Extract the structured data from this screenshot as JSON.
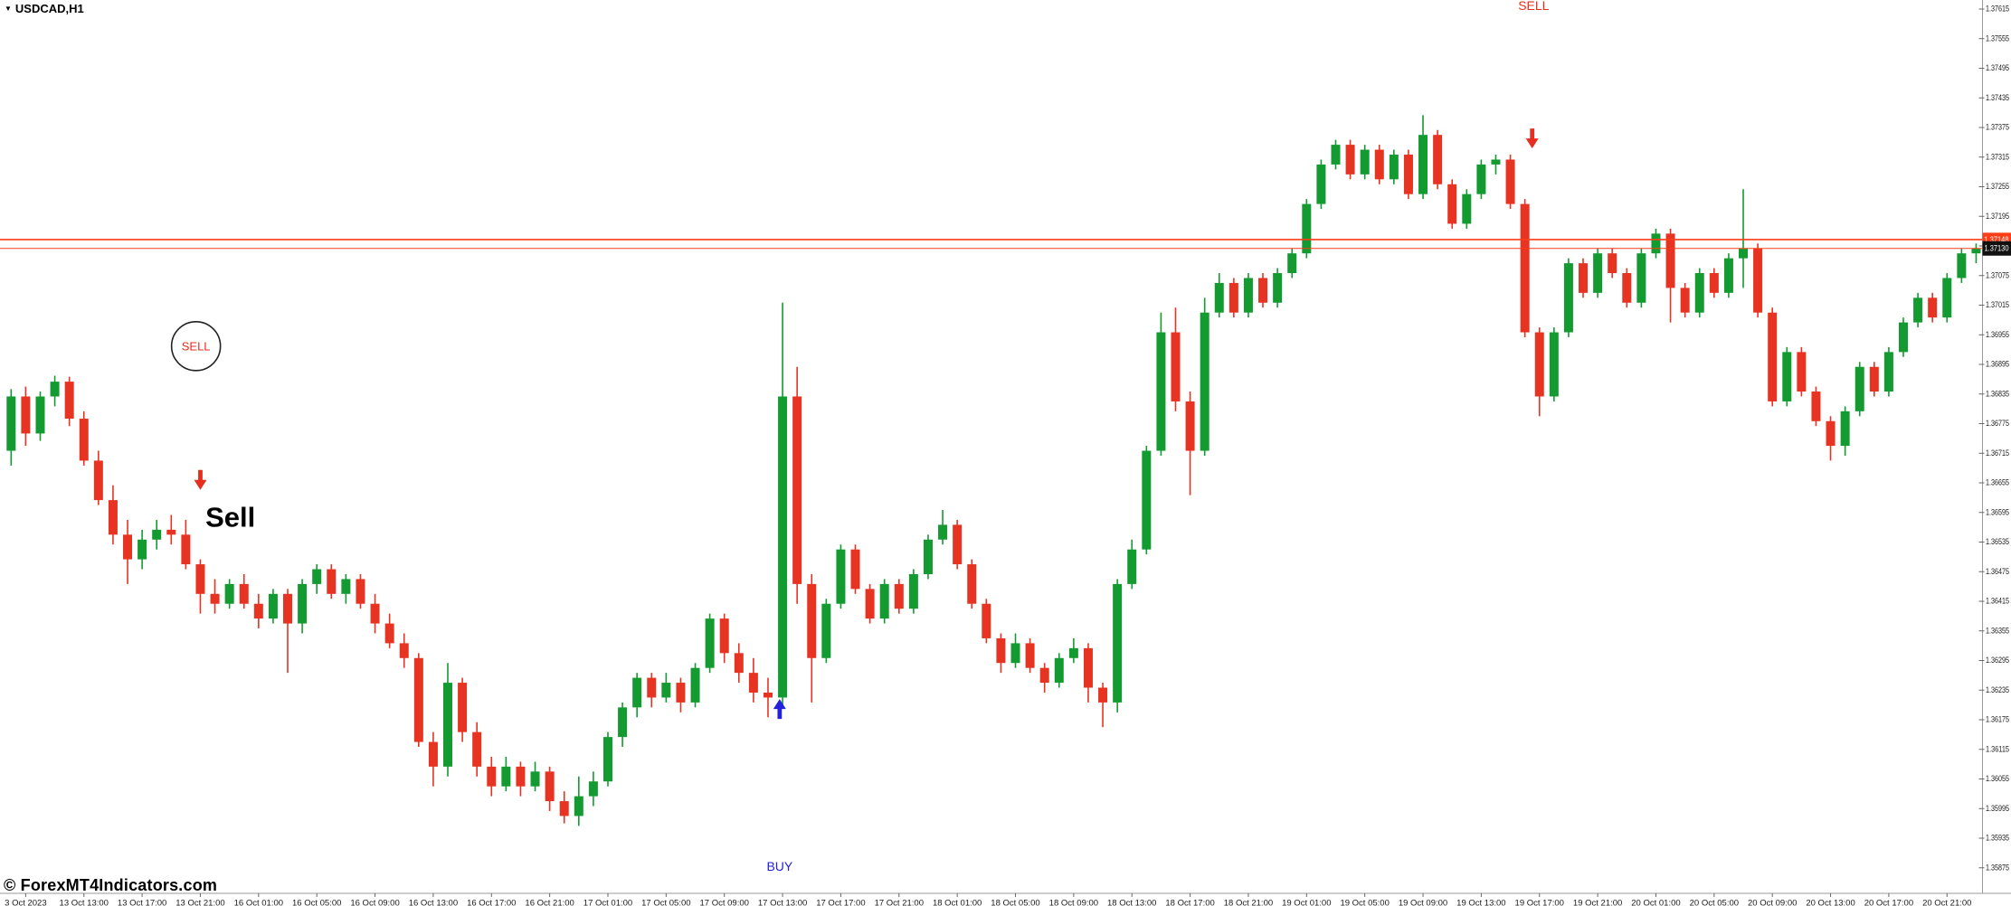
{
  "window": {
    "symbol_icon": "▼",
    "symbol_label": "USDCAD,H1",
    "watermark": "© ForexMT4Indicators.com"
  },
  "colors": {
    "background": "#ffffff",
    "bull": "#139b31",
    "bear": "#e63322",
    "signal_red": "#e62e1f",
    "signal_blue": "#2222dd",
    "hline": "#ff3d17",
    "axis_text": "#1a1a1a",
    "current_badge_bg": "#111111",
    "current_badge_text": "#ffffff",
    "line_badge_bg": "#ff3d17"
  },
  "axis": {
    "price_labels": [
      "1.37615",
      "1.37555",
      "1.37495",
      "1.37435",
      "1.37375",
      "1.37315",
      "1.37255",
      "1.37195",
      "1.37135",
      "1.37075",
      "1.37015",
      "1.36955",
      "1.36895",
      "1.36835",
      "1.36775",
      "1.36715",
      "1.36655",
      "1.36595",
      "1.36535",
      "1.36475",
      "1.36415",
      "1.36355",
      "1.36295",
      "1.36235",
      "1.36175",
      "1.36115",
      "1.36055",
      "1.35995",
      "1.35935",
      "1.35875"
    ],
    "time_labels": [
      "3 Oct 2023",
      "13 Oct 13:00",
      "13 Oct 17:00",
      "13 Oct 21:00",
      "16 Oct 01:00",
      "16 Oct 05:00",
      "16 Oct 09:00",
      "16 Oct 13:00",
      "16 Oct 17:00",
      "16 Oct 21:00",
      "17 Oct 01:00",
      "17 Oct 05:00",
      "17 Oct 09:00",
      "17 Oct 13:00",
      "17 Oct 17:00",
      "17 Oct 21:00",
      "18 Oct 01:00",
      "18 Oct 05:00",
      "18 Oct 09:00",
      "18 Oct 13:00",
      "18 Oct 17:00",
      "18 Oct 21:00",
      "19 Oct 01:00",
      "19 Oct 05:00",
      "19 Oct 09:00",
      "19 Oct 13:00",
      "19 Oct 17:00",
      "19 Oct 21:00",
      "20 Oct 01:00",
      "20 Oct 05:00",
      "20 Oct 09:00",
      "20 Oct 13:00",
      "20 Oct 17:00",
      "20 Oct 21:00"
    ],
    "current_price": "1.37130",
    "line_price": "1.37148"
  },
  "chart_data": {
    "type": "candlestick",
    "symbol": "USDCAD",
    "timeframe": "H1",
    "first_candle_time": "13 Oct 08:00",
    "interval_hours": 1,
    "y_axis": {
      "top_price": 1.37615,
      "bottom_price": 1.35875,
      "step": 0.0006
    },
    "current_price": 1.3713,
    "horizontal_lines": [
      {
        "price": 1.37148,
        "color": "#ff3d17",
        "width": 1.6
      },
      {
        "price": 1.3713,
        "color": "#ff3d17",
        "width": 1.0
      }
    ],
    "candles": [
      [
        1.3672,
        1.36845,
        1.3669,
        1.3683
      ],
      [
        1.3683,
        1.3685,
        1.3673,
        1.36755
      ],
      [
        1.36755,
        1.3684,
        1.3674,
        1.3683
      ],
      [
        1.3683,
        1.36872,
        1.3681,
        1.3686
      ],
      [
        1.3686,
        1.3687,
        1.3677,
        1.36785
      ],
      [
        1.36785,
        1.368,
        1.3669,
        1.367
      ],
      [
        1.367,
        1.3672,
        1.3661,
        1.3662
      ],
      [
        1.3662,
        1.3665,
        1.3653,
        1.3655
      ],
      [
        1.3655,
        1.3658,
        1.3645,
        1.365
      ],
      [
        1.365,
        1.3656,
        1.3648,
        1.3654
      ],
      [
        1.3654,
        1.3658,
        1.3652,
        1.3656
      ],
      [
        1.3656,
        1.3659,
        1.3653,
        1.3655
      ],
      [
        1.3655,
        1.3658,
        1.3648,
        1.3649
      ],
      [
        1.3649,
        1.365,
        1.3639,
        1.3643
      ],
      [
        1.3643,
        1.3646,
        1.3639,
        1.3641
      ],
      [
        1.3641,
        1.3646,
        1.364,
        1.3645
      ],
      [
        1.3645,
        1.3647,
        1.364,
        1.3641
      ],
      [
        1.3641,
        1.3643,
        1.3636,
        1.3638
      ],
      [
        1.3638,
        1.3644,
        1.3637,
        1.3643
      ],
      [
        1.3643,
        1.3644,
        1.3627,
        1.3637
      ],
      [
        1.3637,
        1.3646,
        1.3635,
        1.3645
      ],
      [
        1.3645,
        1.3649,
        1.3643,
        1.3648
      ],
      [
        1.3648,
        1.3649,
        1.3642,
        1.3643
      ],
      [
        1.3643,
        1.3647,
        1.3641,
        1.3646
      ],
      [
        1.3646,
        1.3647,
        1.364,
        1.3641
      ],
      [
        1.3641,
        1.3643,
        1.3635,
        1.3637
      ],
      [
        1.3637,
        1.3639,
        1.3632,
        1.3633
      ],
      [
        1.3633,
        1.3635,
        1.3628,
        1.363
      ],
      [
        1.363,
        1.3631,
        1.3612,
        1.3613
      ],
      [
        1.3613,
        1.3615,
        1.3604,
        1.3608
      ],
      [
        1.3608,
        1.3629,
        1.3606,
        1.3625
      ],
      [
        1.3625,
        1.3626,
        1.3613,
        1.3615
      ],
      [
        1.3615,
        1.3617,
        1.3606,
        1.3608
      ],
      [
        1.3608,
        1.361,
        1.3602,
        1.3604
      ],
      [
        1.3604,
        1.361,
        1.3603,
        1.3608
      ],
      [
        1.3608,
        1.3609,
        1.3602,
        1.3604
      ],
      [
        1.3604,
        1.3609,
        1.3603,
        1.3607
      ],
      [
        1.3607,
        1.3608,
        1.3599,
        1.3601
      ],
      [
        1.3601,
        1.3603,
        1.35965,
        1.3598
      ],
      [
        1.3598,
        1.3606,
        1.3596,
        1.3602
      ],
      [
        1.3602,
        1.3607,
        1.36,
        1.3605
      ],
      [
        1.3605,
        1.3615,
        1.3604,
        1.3614
      ],
      [
        1.3614,
        1.3621,
        1.3612,
        1.362
      ],
      [
        1.362,
        1.3627,
        1.3618,
        1.3626
      ],
      [
        1.3626,
        1.3627,
        1.362,
        1.3622
      ],
      [
        1.3622,
        1.3627,
        1.3621,
        1.3625
      ],
      [
        1.3625,
        1.3626,
        1.3619,
        1.3621
      ],
      [
        1.3621,
        1.3629,
        1.362,
        1.3628
      ],
      [
        1.3628,
        1.3639,
        1.3627,
        1.3638
      ],
      [
        1.3638,
        1.3639,
        1.3629,
        1.3631
      ],
      [
        1.3631,
        1.3633,
        1.3625,
        1.3627
      ],
      [
        1.3627,
        1.363,
        1.3621,
        1.3623
      ],
      [
        1.3623,
        1.3626,
        1.3618,
        1.3622
      ],
      [
        1.3622,
        1.3702,
        1.362,
        1.3683
      ],
      [
        1.3683,
        1.3689,
        1.3641,
        1.3645
      ],
      [
        1.3645,
        1.3647,
        1.3621,
        1.363
      ],
      [
        1.363,
        1.3642,
        1.3629,
        1.3641
      ],
      [
        1.3641,
        1.3653,
        1.364,
        1.3652
      ],
      [
        1.3652,
        1.3653,
        1.3643,
        1.3644
      ],
      [
        1.3644,
        1.3645,
        1.3637,
        1.3638
      ],
      [
        1.3638,
        1.3646,
        1.3637,
        1.3645
      ],
      [
        1.3645,
        1.3646,
        1.3639,
        1.364
      ],
      [
        1.364,
        1.3648,
        1.3639,
        1.3647
      ],
      [
        1.3647,
        1.3655,
        1.3646,
        1.3654
      ],
      [
        1.3654,
        1.366,
        1.3653,
        1.3657
      ],
      [
        1.3657,
        1.3658,
        1.3648,
        1.3649
      ],
      [
        1.3649,
        1.365,
        1.364,
        1.3641
      ],
      [
        1.3641,
        1.3642,
        1.3633,
        1.3634
      ],
      [
        1.3634,
        1.3635,
        1.3627,
        1.3629
      ],
      [
        1.3629,
        1.3635,
        1.3628,
        1.3633
      ],
      [
        1.3633,
        1.3634,
        1.3627,
        1.3628
      ],
      [
        1.3628,
        1.3629,
        1.3623,
        1.3625
      ],
      [
        1.3625,
        1.3631,
        1.3624,
        1.363
      ],
      [
        1.363,
        1.3634,
        1.3629,
        1.3632
      ],
      [
        1.3632,
        1.3633,
        1.3621,
        1.3624
      ],
      [
        1.3624,
        1.3625,
        1.3616,
        1.3621
      ],
      [
        1.3621,
        1.3646,
        1.3619,
        1.3645
      ],
      [
        1.3645,
        1.3654,
        1.3644,
        1.3652
      ],
      [
        1.3652,
        1.3673,
        1.3651,
        1.3672
      ],
      [
        1.3672,
        1.37,
        1.3671,
        1.3696
      ],
      [
        1.3696,
        1.3701,
        1.368,
        1.3682
      ],
      [
        1.3682,
        1.3684,
        1.3663,
        1.3672
      ],
      [
        1.3672,
        1.3703,
        1.3671,
        1.37
      ],
      [
        1.37,
        1.3708,
        1.3699,
        1.3706
      ],
      [
        1.3706,
        1.3707,
        1.3699,
        1.37
      ],
      [
        1.37,
        1.3708,
        1.3699,
        1.3707
      ],
      [
        1.3707,
        1.3708,
        1.3701,
        1.3702
      ],
      [
        1.3702,
        1.3709,
        1.3701,
        1.3708
      ],
      [
        1.3708,
        1.3713,
        1.3707,
        1.3712
      ],
      [
        1.3712,
        1.3723,
        1.3711,
        1.3722
      ],
      [
        1.3722,
        1.3731,
        1.3721,
        1.373
      ],
      [
        1.373,
        1.3735,
        1.3729,
        1.3734
      ],
      [
        1.3734,
        1.3735,
        1.3727,
        1.3728
      ],
      [
        1.3728,
        1.3734,
        1.3727,
        1.3733
      ],
      [
        1.3733,
        1.3734,
        1.3726,
        1.3727
      ],
      [
        1.3727,
        1.3733,
        1.3726,
        1.3732
      ],
      [
        1.3732,
        1.3733,
        1.3723,
        1.3724
      ],
      [
        1.3724,
        1.374,
        1.3723,
        1.3736
      ],
      [
        1.3736,
        1.3737,
        1.3725,
        1.3726
      ],
      [
        1.3726,
        1.3727,
        1.3717,
        1.3718
      ],
      [
        1.3718,
        1.3725,
        1.3717,
        1.3724
      ],
      [
        1.3724,
        1.3731,
        1.3723,
        1.373
      ],
      [
        1.373,
        1.3732,
        1.3728,
        1.3731
      ],
      [
        1.3731,
        1.3732,
        1.3721,
        1.3722
      ],
      [
        1.3722,
        1.3723,
        1.3695,
        1.3696
      ],
      [
        1.3696,
        1.3697,
        1.3679,
        1.3683
      ],
      [
        1.3683,
        1.3697,
        1.3682,
        1.3696
      ],
      [
        1.3696,
        1.3711,
        1.3695,
        1.371
      ],
      [
        1.371,
        1.3711,
        1.3703,
        1.3704
      ],
      [
        1.3704,
        1.3713,
        1.3703,
        1.3712
      ],
      [
        1.3712,
        1.3713,
        1.3707,
        1.3708
      ],
      [
        1.3708,
        1.3709,
        1.3701,
        1.3702
      ],
      [
        1.3702,
        1.3713,
        1.3701,
        1.3712
      ],
      [
        1.3712,
        1.3717,
        1.3711,
        1.3716
      ],
      [
        1.3716,
        1.3717,
        1.3698,
        1.3705
      ],
      [
        1.3705,
        1.3706,
        1.3699,
        1.37
      ],
      [
        1.37,
        1.3709,
        1.3699,
        1.3708
      ],
      [
        1.3708,
        1.3709,
        1.3703,
        1.3704
      ],
      [
        1.3704,
        1.3712,
        1.3703,
        1.3711
      ],
      [
        1.3711,
        1.3725,
        1.3705,
        1.3713
      ],
      [
        1.3713,
        1.3714,
        1.3699,
        1.37
      ],
      [
        1.37,
        1.3701,
        1.3681,
        1.3682
      ],
      [
        1.3682,
        1.3693,
        1.3681,
        1.3692
      ],
      [
        1.3692,
        1.3693,
        1.3683,
        1.3684
      ],
      [
        1.3684,
        1.3685,
        1.3677,
        1.3678
      ],
      [
        1.3678,
        1.3679,
        1.367,
        1.3673
      ],
      [
        1.3673,
        1.3681,
        1.3671,
        1.368
      ],
      [
        1.368,
        1.369,
        1.3679,
        1.3689
      ],
      [
        1.3689,
        1.369,
        1.3683,
        1.3684
      ],
      [
        1.3684,
        1.3693,
        1.3683,
        1.3692
      ],
      [
        1.3692,
        1.3699,
        1.3691,
        1.3698
      ],
      [
        1.3698,
        1.3704,
        1.3697,
        1.3703
      ],
      [
        1.3703,
        1.3704,
        1.3698,
        1.3699
      ],
      [
        1.3699,
        1.3708,
        1.3698,
        1.3707
      ],
      [
        1.3707,
        1.3713,
        1.3706,
        1.3712
      ],
      [
        1.3712,
        1.3714,
        1.371,
        1.3713
      ]
    ],
    "signals": [
      {
        "kind": "text",
        "name": "sell-signal-top-label",
        "label": "SELL",
        "i": 104.6,
        "price": 1.37622,
        "color": "#e62e1f",
        "size": 14,
        "bold": false,
        "anchor": "middle"
      },
      {
        "kind": "circle-text",
        "name": "sell-signal-circle",
        "label": "SELL",
        "i": 12.7,
        "price": 1.36932,
        "r": 27,
        "circle_color": "#222222",
        "text_color": "#e62e1f",
        "size": 13
      },
      {
        "kind": "arrow-down",
        "name": "sell-arrow-1",
        "i": 13,
        "price": 1.36681
      },
      {
        "kind": "text",
        "name": "sell-annotation-label",
        "label": "Sell",
        "i": 13.35,
        "price": 1.36585,
        "color": "#000000",
        "size": 31,
        "bold": true,
        "anchor": "start"
      },
      {
        "kind": "arrow-up",
        "name": "buy-arrow-1",
        "i": 52.8,
        "price": 1.36217
      },
      {
        "kind": "arrow-down",
        "name": "sell-arrow-2",
        "i": 104.5,
        "price": 1.37373
      },
      {
        "kind": "text",
        "name": "buy-signal-label",
        "label": "BUY",
        "i": 52.8,
        "price": 1.35878,
        "color": "#2222dd",
        "size": 14,
        "bold": false,
        "anchor": "middle"
      }
    ]
  }
}
